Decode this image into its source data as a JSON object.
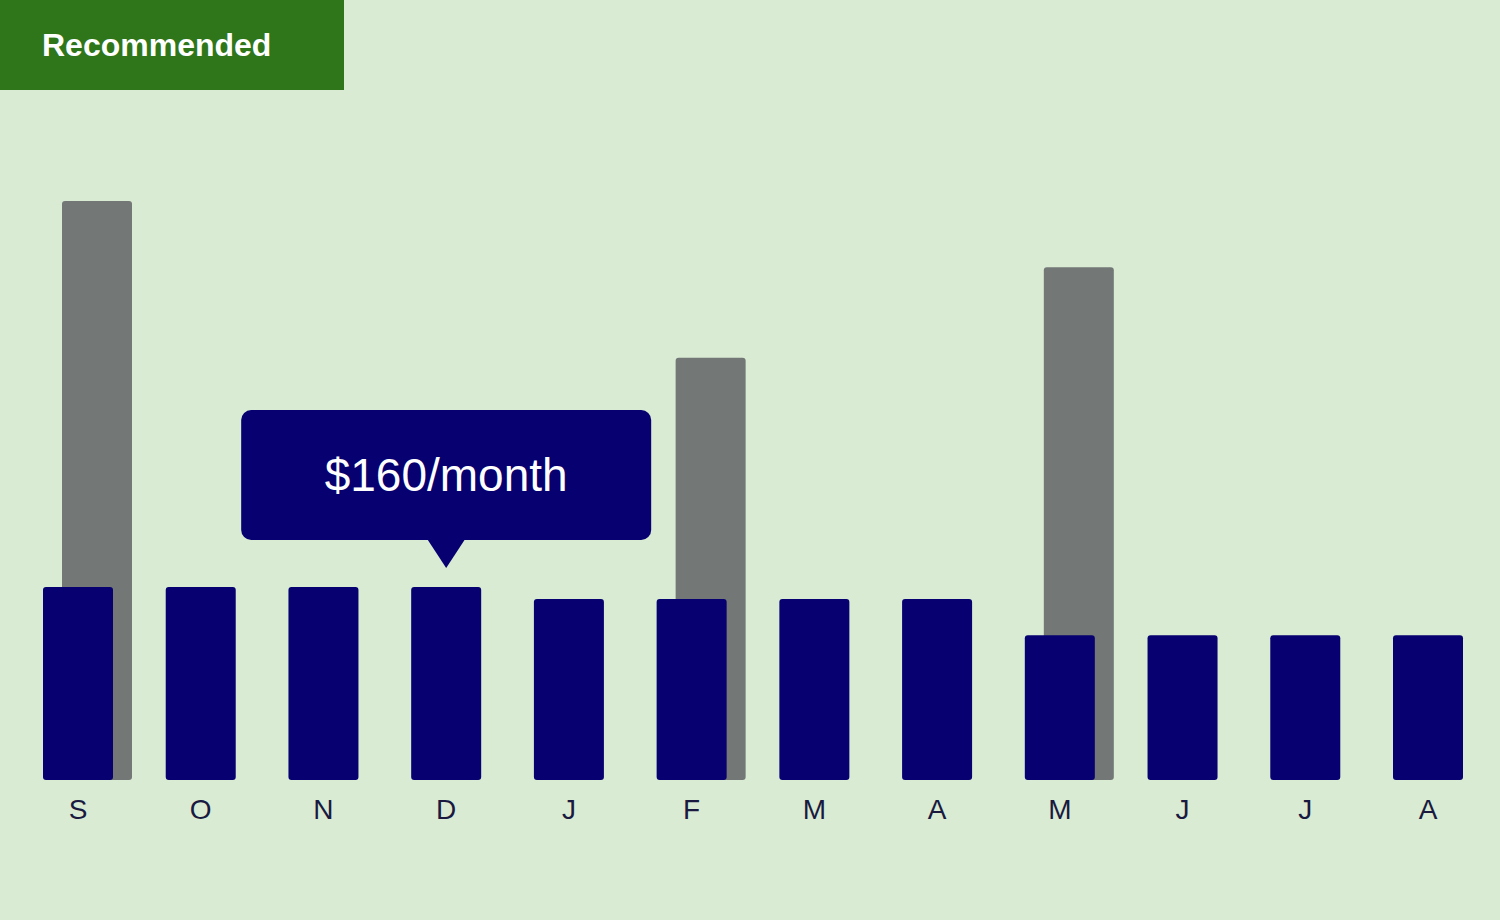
{
  "chart_data": {
    "type": "bar",
    "badge": "Recommended",
    "categories": [
      "S",
      "O",
      "N",
      "D",
      "J",
      "F",
      "M",
      "A",
      "M",
      "J",
      "J",
      "A"
    ],
    "series": [
      {
        "color": "#737877",
        "values": [
          480,
          null,
          null,
          null,
          null,
          350,
          null,
          null,
          425,
          null,
          null,
          null
        ]
      },
      {
        "color": "#060070",
        "values": [
          160,
          160,
          160,
          160,
          150,
          150,
          150,
          150,
          120,
          120,
          120,
          120
        ]
      }
    ],
    "annotation": {
      "text": "$160/month",
      "category": "D"
    },
    "ylim": [
      0,
      500
    ],
    "tick_labels": "x",
    "grid": false
  }
}
